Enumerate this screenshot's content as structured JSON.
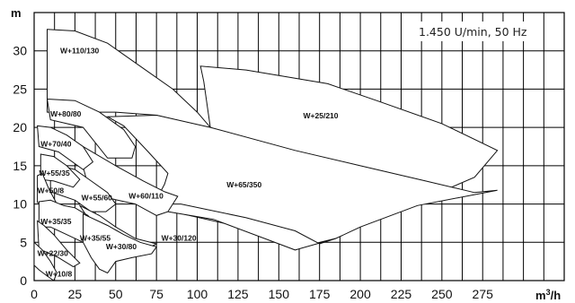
{
  "chart_data": {
    "type": "area",
    "title": "",
    "annotation": "1.450 U/min, 50 Hz",
    "xlabel": "m³/h",
    "ylabel": "m",
    "xlim": [
      0,
      325
    ],
    "ylim": [
      0,
      35
    ],
    "xticks": [
      0,
      25,
      50,
      75,
      100,
      125,
      150,
      175,
      200,
      225,
      250,
      275
    ],
    "yticks": [
      0,
      5,
      10,
      15,
      20,
      25,
      30
    ],
    "grid": true,
    "series": [
      {
        "name": "W+25/210",
        "points": [
          [
            102,
            28
          ],
          [
            104,
            26
          ],
          [
            108,
            20
          ],
          [
            230,
            9.8
          ],
          [
            232,
            10
          ],
          [
            270,
            13.5
          ],
          [
            284,
            17
          ],
          [
            250,
            20.5
          ],
          [
            210,
            23.5
          ],
          [
            180,
            25.7
          ],
          [
            130,
            27.5
          ],
          [
            102,
            28
          ]
        ]
      },
      {
        "name": "W+110/130",
        "points": [
          [
            8,
            32.8
          ],
          [
            25,
            32.6
          ],
          [
            45,
            31
          ],
          [
            65,
            28
          ],
          [
            85,
            25
          ],
          [
            100,
            22
          ],
          [
            108,
            20
          ],
          [
            106,
            20
          ],
          [
            75,
            21.6
          ],
          [
            50,
            22
          ],
          [
            8,
            22
          ],
          [
            8,
            32.8
          ]
        ]
      },
      {
        "name": "W+65/350",
        "points": [
          [
            108,
            20
          ],
          [
            160,
            17
          ],
          [
            200,
            15
          ],
          [
            240,
            13
          ],
          [
            270,
            11.5
          ],
          [
            284,
            11.8
          ],
          [
            235,
            9.8
          ],
          [
            200,
            7
          ],
          [
            185,
            5.5
          ],
          [
            175,
            5
          ],
          [
            160,
            4
          ],
          [
            120,
            7.3
          ],
          [
            85,
            9
          ],
          [
            70,
            10.2
          ],
          [
            75,
            10.6
          ],
          [
            80,
            12.6
          ],
          [
            82,
            14
          ],
          [
            70,
            16.8
          ],
          [
            55,
            20.2
          ],
          [
            45,
            21.4
          ],
          [
            75,
            21.6
          ],
          [
            108,
            20
          ]
        ]
      },
      {
        "name": "W+30/120",
        "points": [
          [
            62,
            10
          ],
          [
            82,
            9
          ],
          [
            110,
            8
          ],
          [
            150,
            4.8
          ],
          [
            160,
            4
          ],
          [
            185,
            5.5
          ],
          [
            175,
            4.8
          ],
          [
            160,
            6.5
          ],
          [
            130,
            8.2
          ],
          [
            90,
            10
          ],
          [
            62,
            10
          ]
        ]
      },
      {
        "name": "W+80/80",
        "points": [
          [
            8,
            23.7
          ],
          [
            25,
            23.5
          ],
          [
            40,
            22
          ],
          [
            55,
            19.7
          ],
          [
            62,
            17.5
          ],
          [
            60,
            16
          ],
          [
            45,
            16
          ],
          [
            30,
            20
          ],
          [
            10,
            21
          ],
          [
            8,
            23.7
          ]
        ]
      },
      {
        "name": "W+60/110",
        "points": [
          [
            26,
            18
          ],
          [
            50,
            15
          ],
          [
            67,
            13
          ],
          [
            80,
            11.6
          ],
          [
            88,
            11
          ],
          [
            82,
            9
          ],
          [
            75,
            8.5
          ],
          [
            62,
            10
          ],
          [
            45,
            10.8
          ],
          [
            33,
            12.5
          ],
          [
            26,
            18
          ]
        ]
      },
      {
        "name": "W+70/40",
        "points": [
          [
            2,
            20.2
          ],
          [
            10,
            20
          ],
          [
            20,
            19
          ],
          [
            30,
            17.5
          ],
          [
            36,
            15.5
          ],
          [
            30,
            14.5
          ],
          [
            15,
            16.8
          ],
          [
            3,
            17.5
          ],
          [
            2,
            20.2
          ]
        ]
      },
      {
        "name": "W+55/60",
        "points": [
          [
            10,
            15.3
          ],
          [
            25,
            14.5
          ],
          [
            35,
            13
          ],
          [
            45,
            11.5
          ],
          [
            50,
            10
          ],
          [
            44,
            9
          ],
          [
            35,
            9
          ],
          [
            25,
            10.5
          ],
          [
            10,
            11.6
          ],
          [
            10,
            15.3
          ]
        ]
      },
      {
        "name": "W+55/35",
        "points": [
          [
            4,
            16.5
          ],
          [
            12,
            16.2
          ],
          [
            20,
            15
          ],
          [
            28,
            13.2
          ],
          [
            24,
            12.2
          ],
          [
            12,
            13
          ],
          [
            4,
            13.2
          ],
          [
            4,
            16.5
          ]
        ]
      },
      {
        "name": "W+50/8",
        "points": [
          [
            2,
            13.7
          ],
          [
            5,
            14
          ],
          [
            9,
            12
          ],
          [
            14,
            10
          ],
          [
            10,
            9.2
          ],
          [
            5,
            10
          ],
          [
            2,
            10.2
          ],
          [
            2,
            13.7
          ]
        ]
      },
      {
        "name": "W+35/55",
        "points": [
          [
            28,
            9.8
          ],
          [
            40,
            8.5
          ],
          [
            50,
            7
          ],
          [
            62,
            5.5
          ],
          [
            75,
            4.8
          ],
          [
            68,
            4
          ],
          [
            55,
            4.7
          ],
          [
            44,
            6
          ],
          [
            35,
            7.5
          ],
          [
            28,
            9.8
          ]
        ]
      },
      {
        "name": "W+35/35",
        "points": [
          [
            3,
            10.3
          ],
          [
            10,
            10.5
          ],
          [
            18,
            9.8
          ],
          [
            25,
            9.5
          ],
          [
            33,
            8.5
          ],
          [
            40,
            6.5
          ],
          [
            46,
            5.2
          ],
          [
            40,
            4
          ],
          [
            30,
            5
          ],
          [
            20,
            6
          ],
          [
            10,
            7
          ],
          [
            3,
            7
          ],
          [
            3,
            10.3
          ]
        ]
      },
      {
        "name": "W+30/80",
        "points": [
          [
            30,
            8.7
          ],
          [
            45,
            7.2
          ],
          [
            55,
            6
          ],
          [
            65,
            5
          ],
          [
            75,
            4.4
          ],
          [
            72,
            3.5
          ],
          [
            60,
            3
          ],
          [
            50,
            2.5
          ],
          [
            45,
            1
          ],
          [
            40,
            1.5
          ],
          [
            35,
            3
          ],
          [
            30,
            5
          ],
          [
            30,
            8.7
          ]
        ]
      },
      {
        "name": "W+22/30",
        "points": [
          [
            2,
            7.8
          ],
          [
            6,
            7.2
          ],
          [
            12,
            6
          ],
          [
            20,
            4
          ],
          [
            28,
            2.3
          ],
          [
            24,
            1.8
          ],
          [
            15,
            3
          ],
          [
            8,
            3.7
          ],
          [
            3,
            4
          ],
          [
            2,
            7.8
          ]
        ]
      },
      {
        "name": "W+10/8",
        "points": [
          [
            0,
            5
          ],
          [
            5,
            4
          ],
          [
            10,
            2.5
          ],
          [
            14,
            1
          ],
          [
            12,
            0
          ],
          [
            8,
            0.6
          ],
          [
            3,
            1.4
          ],
          [
            0,
            2
          ],
          [
            0,
            5
          ]
        ]
      }
    ],
    "labels": [
      {
        "text": "W+110/130",
        "x": 16,
        "y": 29.7
      },
      {
        "text": "W+25/210",
        "x": 165,
        "y": 21.2
      },
      {
        "text": "W+80/80",
        "x": 10,
        "y": 21.4
      },
      {
        "text": "W+70/40",
        "x": 4,
        "y": 17.5
      },
      {
        "text": "W+55/35",
        "x": 3,
        "y": 13.7
      },
      {
        "text": "W+50/8",
        "x": 2,
        "y": 11.4
      },
      {
        "text": "W+55/60",
        "x": 29,
        "y": 10.5
      },
      {
        "text": "W+60/110",
        "x": 58,
        "y": 10.7
      },
      {
        "text": "W+65/350",
        "x": 118,
        "y": 12.2
      },
      {
        "text": "W+35/35",
        "x": 4,
        "y": 7.4
      },
      {
        "text": "W+35/55",
        "x": 28,
        "y": 5.2
      },
      {
        "text": "W+30/120",
        "x": 78,
        "y": 5.2
      },
      {
        "text": "W+30/80",
        "x": 44,
        "y": 4.1
      },
      {
        "text": "W+22/30",
        "x": 2,
        "y": 3.2
      },
      {
        "text": "W+10/8",
        "x": 7,
        "y": 0.5
      }
    ]
  }
}
